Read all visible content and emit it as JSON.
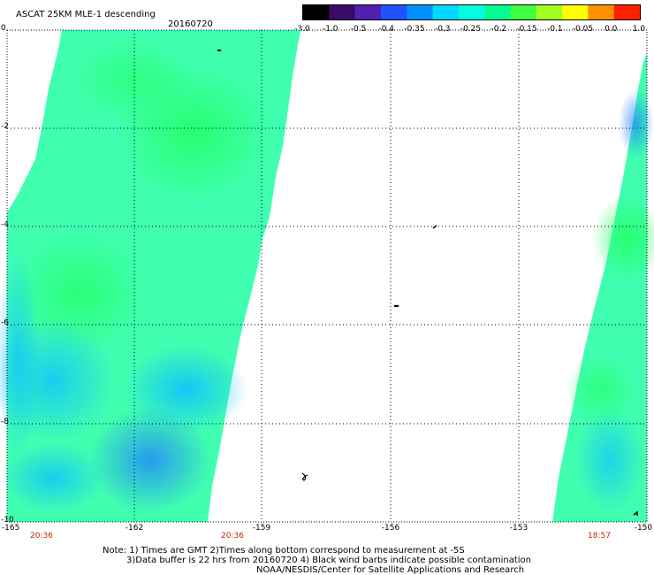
{
  "header": {
    "title": "ASCAT 25KM MLE-1 descending",
    "date": "20160720"
  },
  "colorbar": {
    "labels": [
      "-3.0",
      "-1.0",
      "-0.5",
      "-0.4",
      "-0.35",
      "-0.3",
      "-0.25",
      "-0.2",
      "-0.15",
      "-0.1",
      "-0.05",
      "0.0",
      "1.0"
    ],
    "colors": [
      "#000000",
      "#3a0a6a",
      "#5020b0",
      "#2050ff",
      "#0090ff",
      "#00d8ff",
      "#00ffe0",
      "#00ff90",
      "#40ff40",
      "#a0ff20",
      "#ffff00",
      "#ff9000",
      "#ff2000"
    ]
  },
  "map": {
    "lat_labels": [
      "0",
      "-2",
      "-4",
      "-6",
      "-8",
      "-10"
    ],
    "lon_labels": [
      "-165",
      "-162",
      "-159",
      "-156",
      "-153",
      "-150"
    ],
    "swath_times": [
      "20:36",
      "20:36",
      "18:57"
    ]
  },
  "footer": {
    "note1": "Note: 1) Times are GMT 2)Times along bottom correspond to measurement at -5S",
    "note2": "3)Data buffer is 22 hrs from 20160720 4) Black wind barbs indicate possible contamination",
    "credit": "NOAA/NESDIS/Center for Satellite Applications and Research"
  }
}
